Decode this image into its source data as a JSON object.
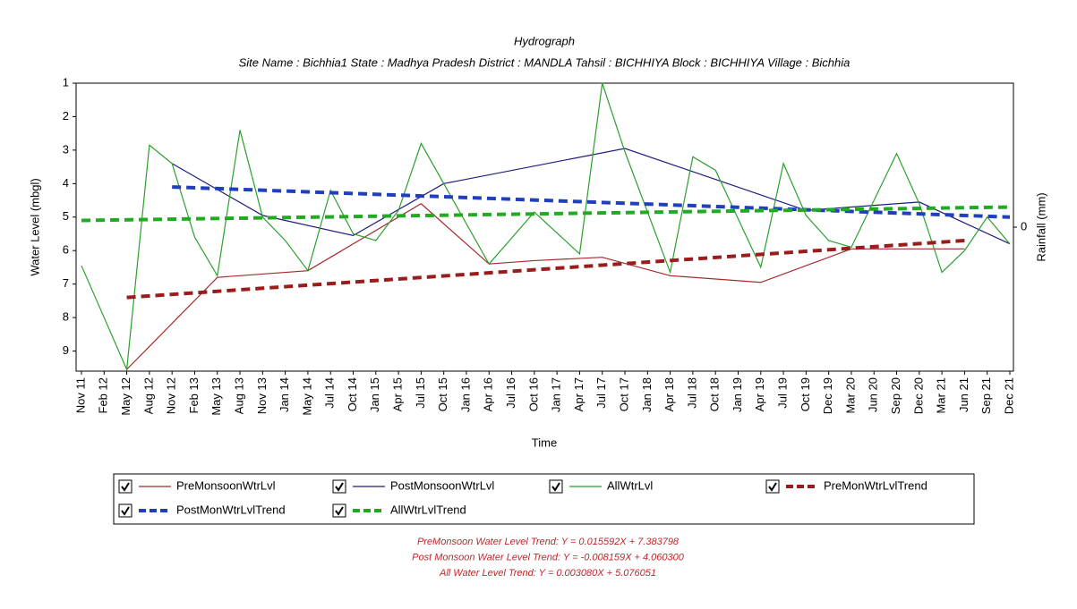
{
  "chart_data": {
    "type": "line",
    "title": "Hydrograph",
    "subtitle": "Site Name : Bichhia1  State : Madhya Pradesh District : MANDLA  Tahsil : BICHHIYA  Block : BICHHIYA Village : Bichhia",
    "xlabel": "Time",
    "ylabel": "Water Level (mbgl)",
    "y2label": "Rainfall (mm)",
    "categories": [
      "Nov 11",
      "Feb 12",
      "May 12",
      "Aug 12",
      "Nov 12",
      "Feb 13",
      "May 13",
      "Aug 13",
      "Nov 13",
      "Jan 14",
      "May 14",
      "Jul 14",
      "Oct 14",
      "Jan 15",
      "Apr 15",
      "Jul 15",
      "Oct 15",
      "Jan 16",
      "Apr 16",
      "Jul 16",
      "Oct 16",
      "Jan 17",
      "Apr 17",
      "Jul 17",
      "Oct 17",
      "Jan 18",
      "Apr 18",
      "Jul 18",
      "Oct 18",
      "Jan 19",
      "Apr 19",
      "Jul 19",
      "Oct 19",
      "Dec 19",
      "Mar 20",
      "Jun 20",
      "Sep 20",
      "Dec 20",
      "Mar 21",
      "Jun 21",
      "Sep 21",
      "Dec 21"
    ],
    "ylim": [
      1,
      9.6
    ],
    "y_inverted": true,
    "yticks": [
      1,
      2,
      3,
      4,
      5,
      6,
      7,
      8,
      9
    ],
    "y2lim": [
      -1,
      1
    ],
    "y2ticks": [
      0
    ],
    "series": [
      {
        "name": "PreMonsoonWtrLvl",
        "color": "#a52a2a",
        "dashed": false,
        "x": [
          "May 12",
          "May 13",
          "May 14",
          "Jul 15",
          "Apr 16",
          "Oct 16",
          "Jul 17",
          "Apr 18",
          "Apr 19",
          "Mar 20",
          "Jun 21"
        ],
        "values": [
          9.55,
          6.8,
          6.6,
          4.6,
          6.4,
          6.3,
          6.2,
          6.75,
          6.95,
          5.95,
          5.95
        ]
      },
      {
        "name": "PostMonsoonWtrLvl",
        "color": "#1c1c80",
        "dashed": false,
        "x": [
          "Nov 12",
          "Nov 13",
          "Oct 14",
          "Oct 15",
          "Oct 17",
          "Oct 19",
          "Dec 20",
          "Dec 21"
        ],
        "values": [
          3.4,
          4.95,
          5.55,
          4.0,
          2.95,
          4.8,
          4.55,
          5.8
        ]
      },
      {
        "name": "AllWtrLvl",
        "color": "#2ca02c",
        "dashed": false,
        "x": [
          "Nov 11",
          "May 12",
          "Aug 12",
          "Nov 12",
          "Feb 13",
          "May 13",
          "Aug 13",
          "Nov 13",
          "Jan 14",
          "May 14",
          "Jul 14",
          "Oct 14",
          "Jan 15",
          "Apr 15",
          "Jul 15",
          "Apr 16",
          "Oct 16",
          "Apr 17",
          "Jul 17",
          "Oct 17",
          "Apr 18",
          "Jul 18",
          "Oct 18",
          "Apr 19",
          "Jul 19",
          "Oct 19",
          "Dec 19",
          "Mar 20",
          "Sep 20",
          "Dec 20",
          "Mar 21",
          "Jun 21",
          "Sep 21",
          "Dec 21"
        ],
        "values": [
          6.45,
          9.55,
          2.85,
          3.4,
          5.6,
          6.75,
          2.4,
          5.0,
          5.7,
          6.6,
          4.2,
          5.5,
          5.7,
          4.8,
          2.8,
          6.4,
          4.85,
          6.1,
          1.0,
          3.05,
          6.65,
          3.2,
          3.6,
          6.5,
          3.4,
          4.95,
          5.7,
          5.9,
          3.1,
          4.6,
          6.65,
          6.0,
          5.0,
          5.8
        ]
      },
      {
        "name": "PreMonWtrLvlTrend",
        "color": "#9b1c1c",
        "dashed": true,
        "x": [
          "May 12",
          "Jun 21"
        ],
        "values": [
          7.4,
          5.7
        ]
      },
      {
        "name": "PostMonWtrLvlTrend",
        "color": "#1f3fbf",
        "dashed": true,
        "x": [
          "Nov 12",
          "Dec 21"
        ],
        "values": [
          4.1,
          5.0
        ]
      },
      {
        "name": "AllWtrLvlTrend",
        "color": "#22aa22",
        "dashed": true,
        "x": [
          "Nov 11",
          "Dec 21"
        ],
        "values": [
          5.1,
          4.7
        ]
      }
    ],
    "annotations": [
      "PreMonsoon Water Level Trend: Y = 0.015592X + 7.383798",
      "Post Monsoon Water Level Trend: Y = -0.008159X + 4.060300",
      "All Water Level Trend: Y = 0.003080X + 5.076051"
    ],
    "annotation_color": "#c0272d"
  }
}
